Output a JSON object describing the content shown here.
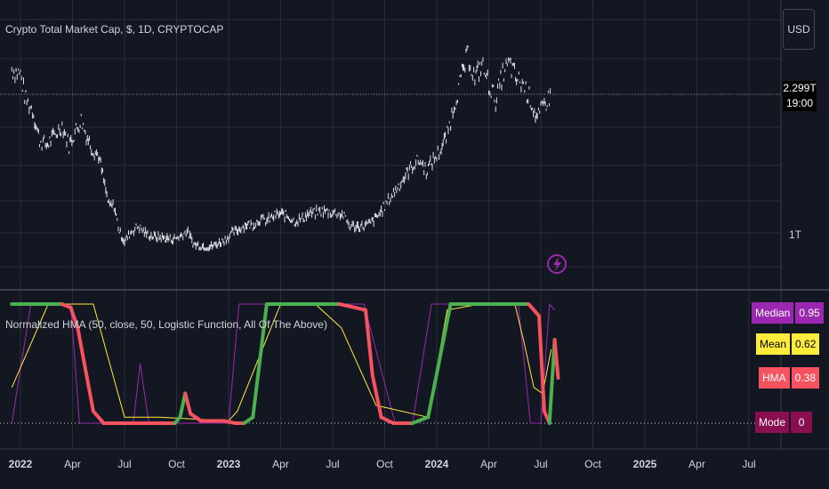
{
  "header": {
    "title": "Crypto Total Market Cap, $, 1D, CRYPTOCAP",
    "currency": "USD"
  },
  "price_axis": {
    "last_price": "2.299T",
    "countdown": "19:00",
    "tick_1t": "1T"
  },
  "indicator": {
    "title": "Normalized HMA (50, close, 50, Logistic Function, All Of The Above)",
    "badges": [
      {
        "label": "Median",
        "value": "0.95",
        "color": "#9c27b0"
      },
      {
        "label": "Mean",
        "value": "0.62",
        "color": "#ffeb3b"
      },
      {
        "label": "HMA",
        "value": "0.38",
        "color": "#f7525f"
      },
      {
        "label": "Mode",
        "value": "0",
        "color": "#880e4f"
      }
    ]
  },
  "colors": {
    "background": "#131722",
    "grid": "#2a2e39",
    "hma_up": "#4caf50",
    "hma_down": "#f7525f",
    "median": "#9c27b0",
    "mean": "#ffeb3b"
  },
  "chart_data": [
    {
      "type": "line",
      "title": "Crypto Total Market Cap, $, 1D, CRYPTOCAP",
      "x_ticks": [
        "2022",
        "Apr",
        "Jul",
        "Oct",
        "2023",
        "Apr",
        "Jul",
        "Oct",
        "2024",
        "Apr",
        "Jul",
        "Oct",
        "2025",
        "Apr",
        "Jul"
      ],
      "x_tick_months": [
        0,
        3,
        6,
        9,
        12,
        15,
        18,
        21,
        24,
        27,
        30,
        33,
        36,
        39,
        42
      ],
      "bold_ticks": [
        "2022",
        "2023",
        "2024",
        "2025"
      ],
      "y_labels": [
        "1T",
        "2.299T"
      ],
      "series": [
        {
          "name": "Crypto Total Market Cap",
          "x": [
            -0.5,
            0,
            0.3,
            0.7,
            1.1,
            1.5,
            2,
            2.4,
            2.8,
            3.2,
            3.5,
            3.8,
            4.2,
            4.5,
            4.8,
            5.1,
            5.4,
            5.7,
            6,
            6.4,
            6.8,
            7.2,
            7.6,
            8,
            8.4,
            8.8,
            9.2,
            9.6,
            10,
            10.3,
            10.6,
            11,
            11.4,
            11.8,
            12.2,
            12.6,
            13,
            13.4,
            13.8,
            14.2,
            14.6,
            15,
            15.4,
            15.8,
            16.2,
            16.6,
            17,
            17.4,
            17.8,
            18.2,
            18.6,
            19,
            19.4,
            19.8,
            20.2,
            20.6,
            21,
            21.4,
            21.8,
            22.2,
            22.6,
            23,
            23.4,
            23.8,
            24.2,
            24.6,
            25,
            25.4,
            25.8,
            26.2,
            26.6,
            27,
            27.4,
            27.8,
            28.2,
            28.6,
            29,
            29.4,
            29.8,
            30.2,
            30.6
          ],
          "y": [
            2.6,
            2.55,
            2.3,
            2.2,
            1.9,
            1.85,
            1.95,
            2.05,
            1.85,
            2.0,
            2.1,
            1.95,
            1.8,
            1.75,
            1.5,
            1.25,
            1.25,
            1.0,
            0.9,
            1.0,
            1.05,
            0.98,
            0.95,
            0.94,
            0.93,
            0.92,
            0.95,
            1.0,
            0.87,
            0.86,
            0.85,
            0.85,
            0.88,
            0.92,
            0.98,
            1.02,
            1.07,
            1.06,
            1.12,
            1.1,
            1.15,
            1.17,
            1.15,
            1.1,
            1.12,
            1.17,
            1.18,
            1.2,
            1.19,
            1.18,
            1.16,
            1.05,
            1.05,
            1.05,
            1.08,
            1.15,
            1.25,
            1.35,
            1.45,
            1.55,
            1.65,
            1.7,
            1.6,
            1.7,
            1.8,
            1.95,
            2.25,
            2.5,
            2.75,
            2.5,
            2.65,
            2.45,
            2.3,
            2.55,
            2.65,
            2.5,
            2.45,
            2.3,
            2.1,
            2.25,
            2.35
          ],
          "ylim": [
            0.65,
            2.8
          ]
        }
      ]
    },
    {
      "type": "line",
      "title": "Normalized HMA (50, close, 50, Logistic Function, All Of The Above)",
      "ylim": [
        0,
        1
      ],
      "series": [
        {
          "name": "HMA",
          "x": [
            -0.5,
            0.5,
            1.5,
            2.4,
            2.9,
            3.3,
            4.2,
            4.8,
            5.3,
            5.8,
            6.6,
            7.4,
            8.2,
            8.9,
            9.2,
            9.5,
            9.8,
            10.4,
            11,
            11.7,
            12.4,
            12.9,
            13.4,
            14.2,
            14.7,
            15.3,
            17.0,
            18.4,
            19.9,
            20.3,
            20.8,
            21.5,
            22.6,
            23.5,
            24.8,
            26.0,
            27.0,
            28.5,
            29.3,
            29.9,
            30.2,
            30.5,
            30.8,
            31.0
          ],
          "y": [
            1,
            1,
            1,
            1,
            0.97,
            0.8,
            0.1,
            0,
            0,
            0,
            0,
            0,
            0,
            0,
            0.05,
            0.25,
            0.08,
            0.02,
            0.02,
            0.02,
            0,
            0,
            0.05,
            1,
            1,
            1,
            1,
            1,
            0.95,
            0.4,
            0.05,
            0,
            0,
            0.05,
            1,
            1,
            1,
            1,
            1,
            0.9,
            0.1,
            0,
            0.7,
            0.38
          ]
        },
        {
          "name": "Mean",
          "x": [
            -0.5,
            1.6,
            4.2,
            6.0,
            8.0,
            12.0,
            12.5,
            15.0,
            17.0,
            18.5,
            20.5,
            23.5,
            24.6,
            26.5,
            28.5,
            29.0,
            29.6,
            30.1,
            30.6
          ],
          "y": [
            0.3,
            1,
            1,
            0.05,
            0.05,
            0.02,
            0.1,
            1,
            1,
            0.8,
            0.15,
            0.05,
            0.95,
            1,
            1,
            0.7,
            0.3,
            0.25,
            0.62
          ]
        },
        {
          "name": "Median",
          "x": [
            -0.5,
            0.6,
            2.9,
            3.4,
            5.0,
            6.5,
            6.9,
            7.4,
            12.0,
            12.6,
            15.6,
            17.5,
            18.5,
            19.8,
            21.6,
            22.6,
            23.7,
            27.8,
            28.7,
            29.4,
            30.0,
            30.5,
            30.8
          ],
          "y": [
            0,
            1,
            1,
            0,
            0,
            0,
            0.5,
            0,
            0,
            1,
            1,
            1,
            1,
            1,
            0,
            0,
            1,
            1,
            1,
            0,
            0,
            1,
            0.95
          ]
        },
        {
          "name": "Mode",
          "x": [
            -0.5,
            31
          ],
          "y": [
            0,
            0
          ]
        }
      ]
    }
  ]
}
